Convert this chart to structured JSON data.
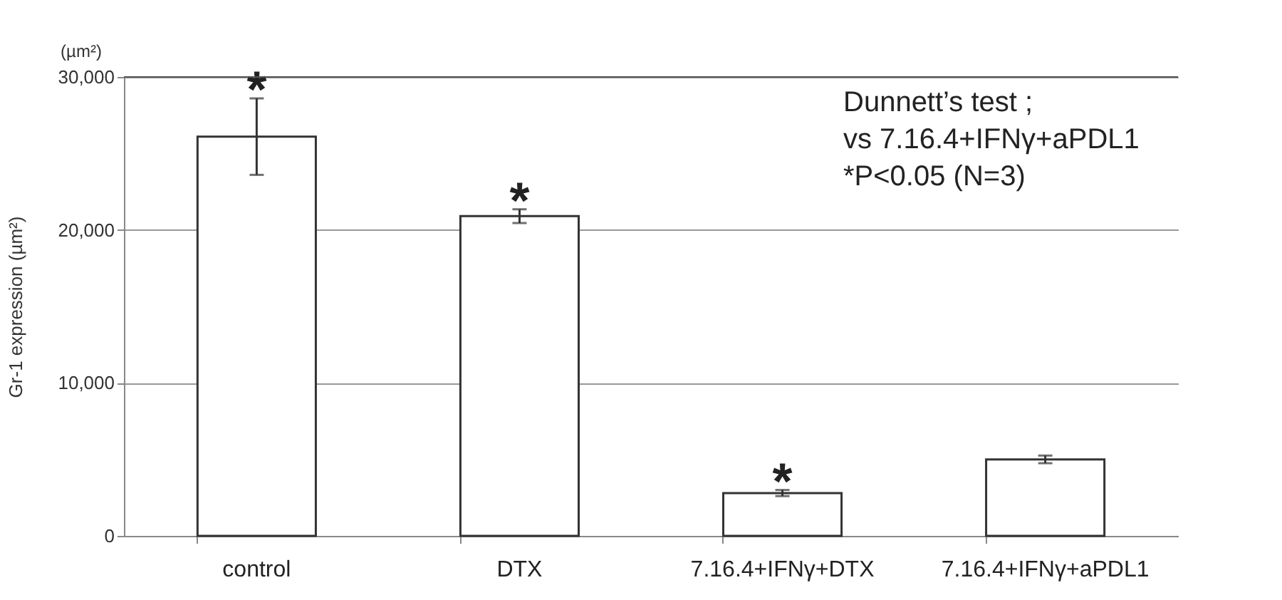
{
  "chart_data": {
    "type": "bar",
    "ylabel": "Gr-1 expression (µm²)",
    "categories": [
      "control",
      "DTX",
      "7.16.4+IFNγ+DTX",
      "7.16.4+IFNγ+aPDL1"
    ],
    "values": [
      26100,
      20900,
      2800,
      5000
    ],
    "errors": [
      2500,
      450,
      200,
      250
    ],
    "color": "#ffffff",
    "ylim": [
      0,
      30000
    ],
    "yticks": [
      {
        "value": 0,
        "label": "0"
      },
      {
        "value": 10000,
        "label": "10,000"
      },
      {
        "value": 20000,
        "label": "20,000"
      },
      {
        "value": 30000,
        "label": "30,000"
      }
    ],
    "grid": "y",
    "annotations": [
      "(µm²)",
      "Dunnett’s test ;\nvs 7.16.4+IFNγ+aPDL1\n*P<0.05 (N=3)",
      {
        "text": "*",
        "x": "control",
        "y": 28600
      },
      {
        "text": "*",
        "x": "DTX",
        "y": 21350
      },
      {
        "text": "*",
        "x": "7.16.4+IFNγ+DTX",
        "y": 3000
      }
    ]
  }
}
